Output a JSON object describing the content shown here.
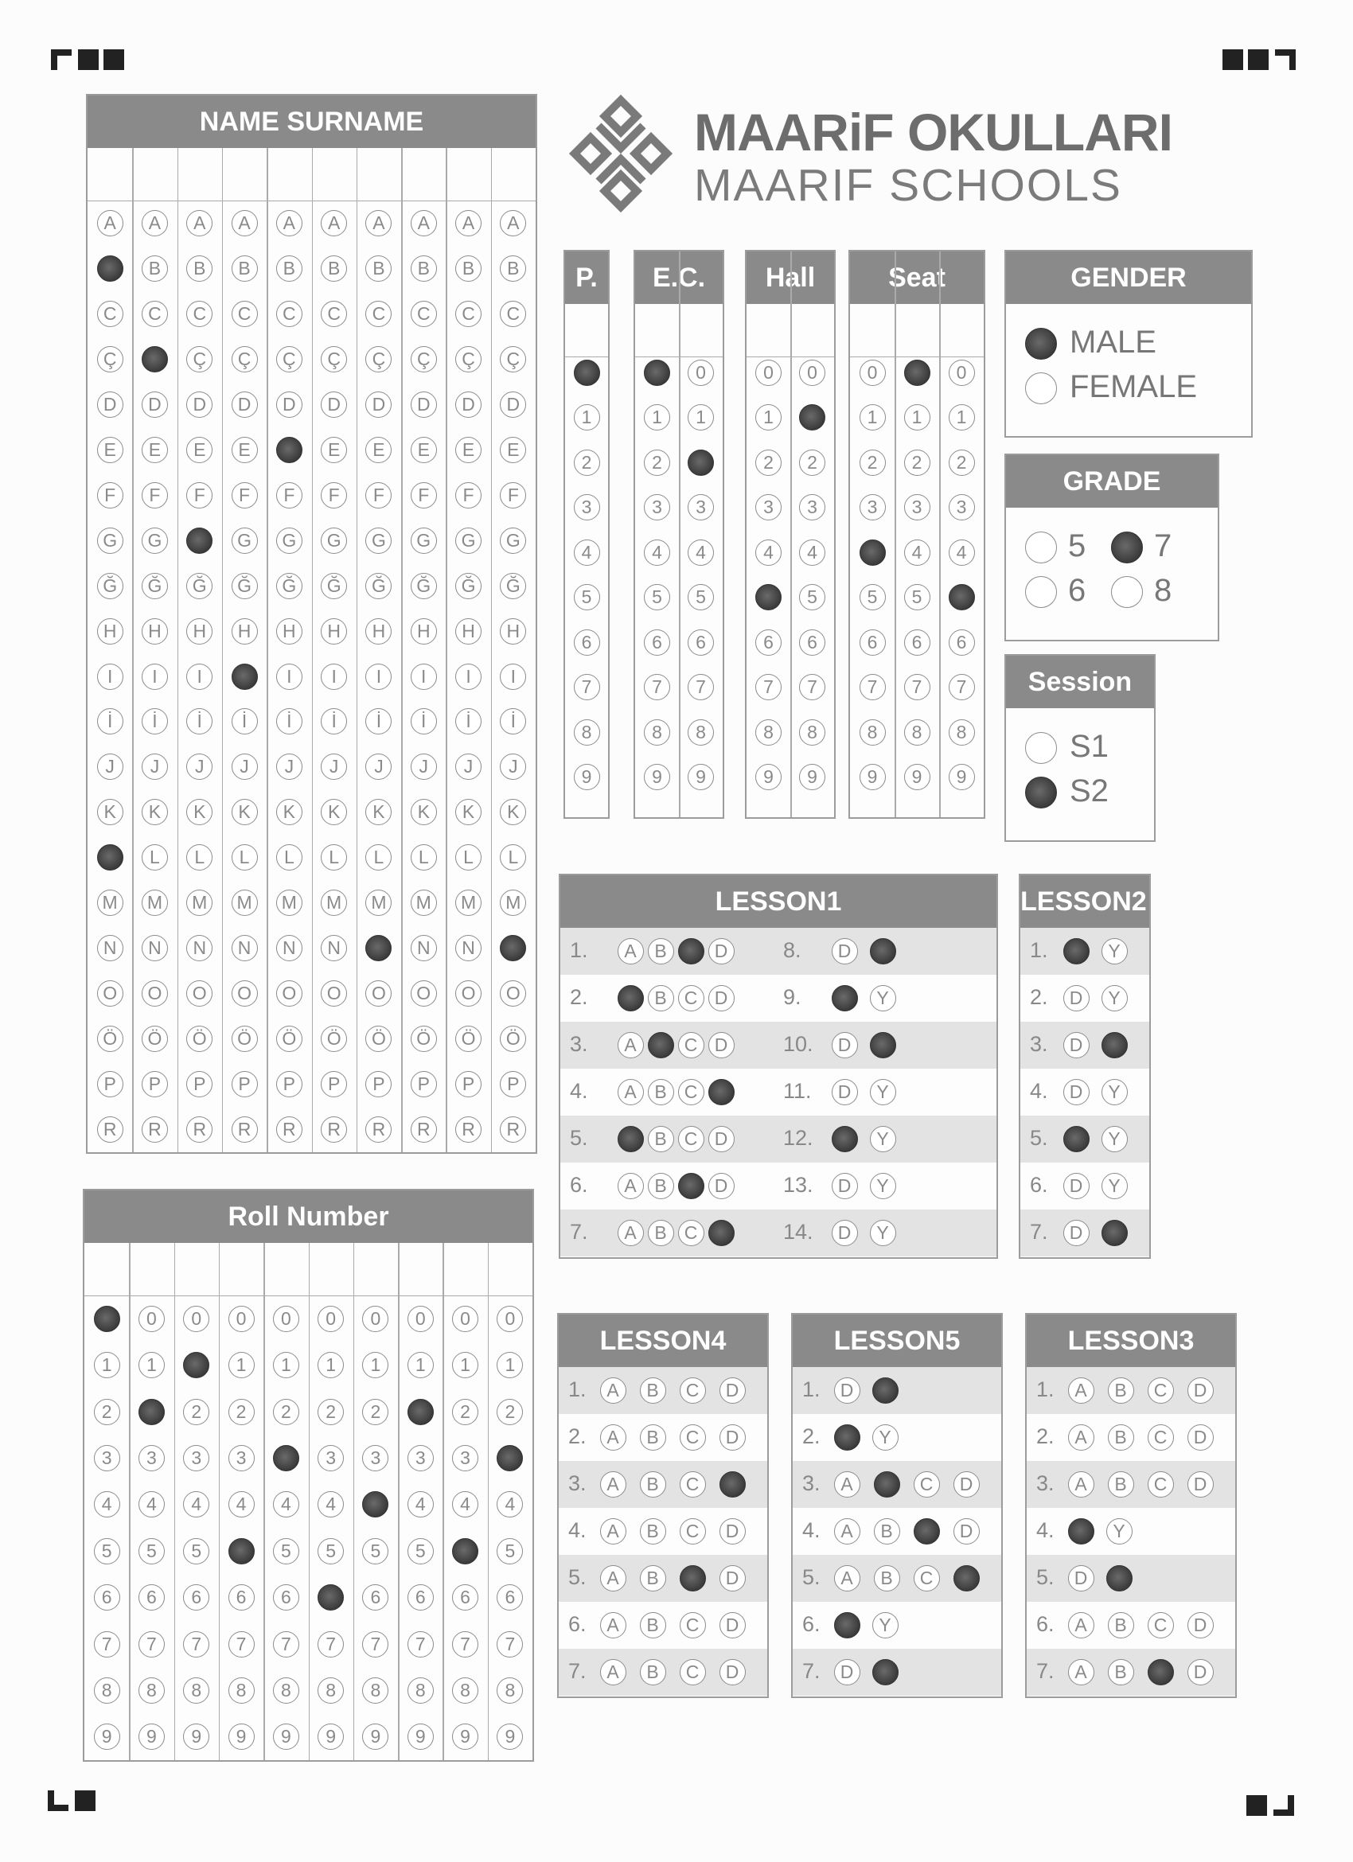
{
  "brand": {
    "name_tr": "MAARiF OKULLARI",
    "name_en": "MAARIF SCHOOLS"
  },
  "name_section": {
    "title": "NAME SURNAME",
    "letters": [
      "A",
      "B",
      "C",
      "Ç",
      "D",
      "E",
      "F",
      "G",
      "Ğ",
      "H",
      "I",
      "İ",
      "J",
      "K",
      "L",
      "M",
      "N",
      "O",
      "Ö",
      "P",
      "R"
    ],
    "columns": 10
  },
  "roll_section": {
    "title": "Roll Number",
    "digits": [
      "0",
      "1",
      "2",
      "3",
      "4",
      "5",
      "6",
      "7",
      "8",
      "9"
    ],
    "columns": 10
  },
  "small_fields": [
    {
      "key": "p",
      "title": "P."
    },
    {
      "key": "ec",
      "title": "E.C."
    },
    {
      "key": "hall",
      "title": "Hall"
    },
    {
      "key": "seat",
      "title": "Seat"
    }
  ],
  "gender": {
    "title": "GENDER",
    "options": [
      "MALE",
      "FEMALE"
    ]
  },
  "grade": {
    "title": "GRADE",
    "options": [
      "5",
      "7",
      "6",
      "8"
    ]
  },
  "session": {
    "title": "Session",
    "options": [
      "S1",
      "S2"
    ]
  },
  "lessons": {
    "lesson1": {
      "title": "LESSON1"
    },
    "lesson2": {
      "title": "LESSON2"
    },
    "lesson3": {
      "title": "LESSON3"
    },
    "lesson4": {
      "title": "LESSON4"
    },
    "lesson5": {
      "title": "LESSON5"
    }
  },
  "colors": {
    "header_bg": "#8a8a8a",
    "mark": "#3a3a3a",
    "row_shade": "#e3e3e3"
  }
}
